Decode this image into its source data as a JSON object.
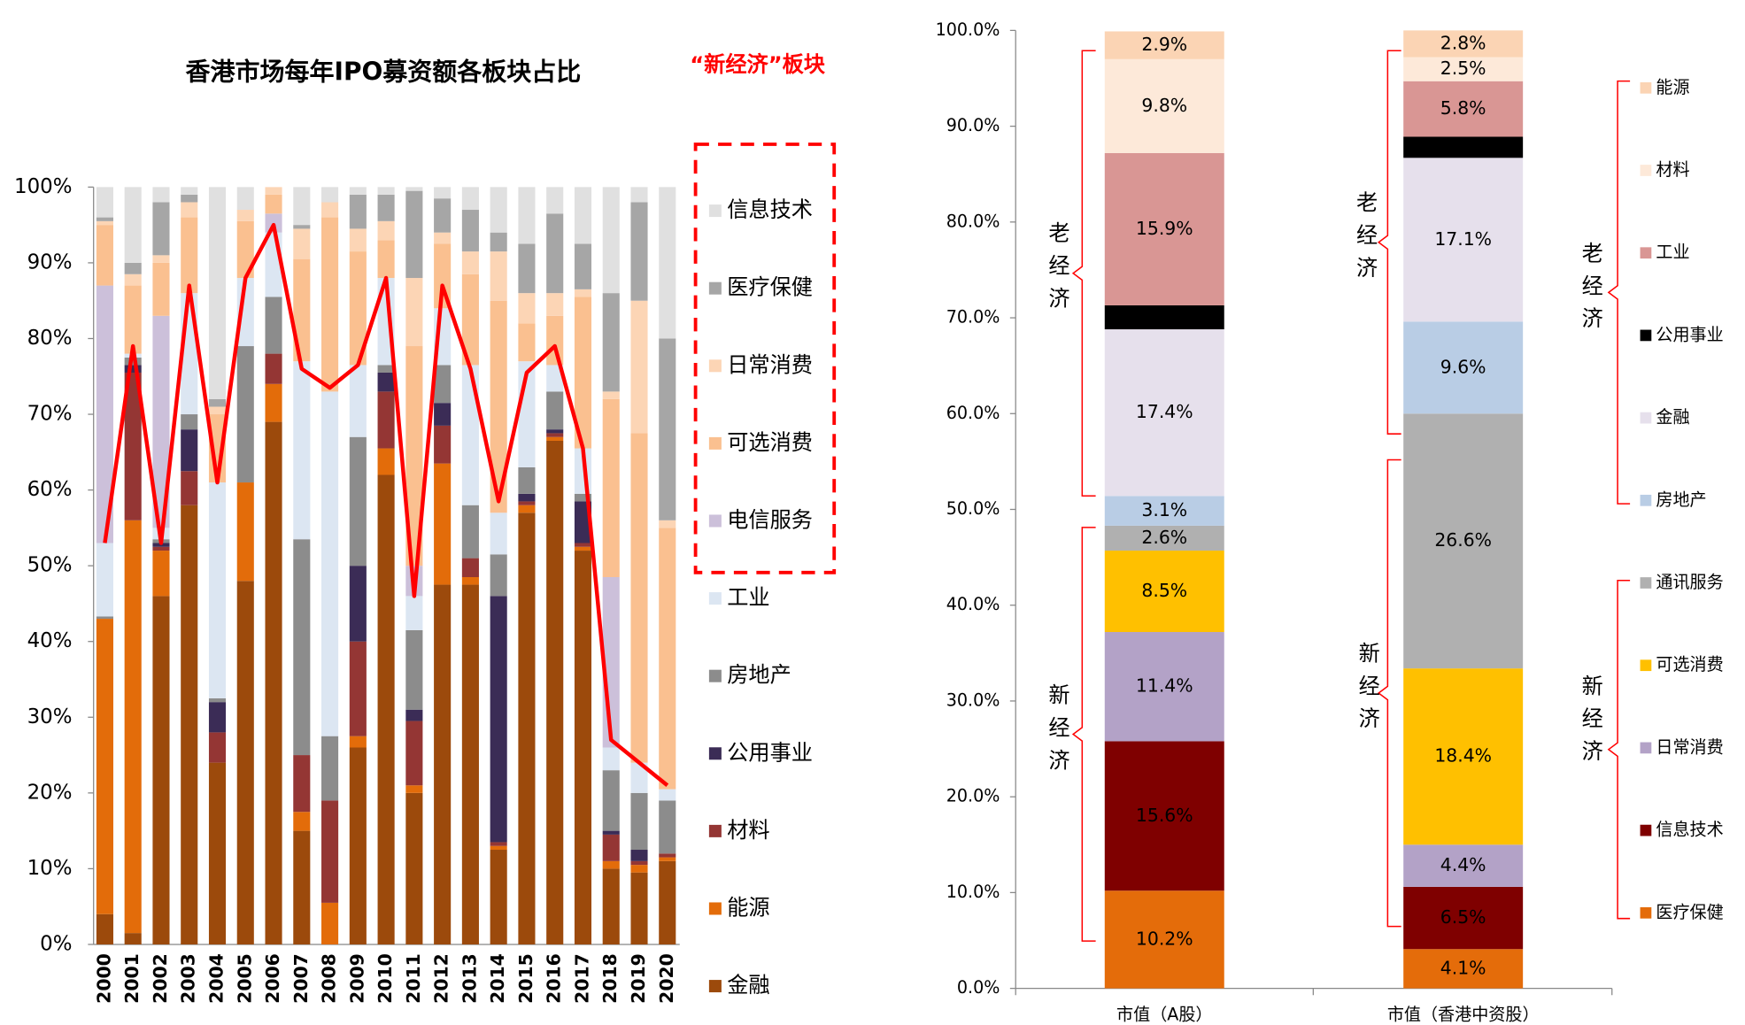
{
  "chart_data": [
    {
      "type": "bar",
      "stacked": true,
      "title": "香港市场每年IPO募资额各板块占比",
      "annotation": "“新经济”板块",
      "categories": [
        "2000",
        "2001",
        "2002",
        "2003",
        "2004",
        "2005",
        "2006",
        "2007",
        "2008",
        "2009",
        "2010",
        "2011",
        "2012",
        "2013",
        "2014",
        "2015",
        "2016",
        "2017",
        "2018",
        "2019",
        "2020"
      ],
      "ylim": [
        0,
        100
      ],
      "yticks": [
        {
          "value": 0,
          "label": "0%"
        },
        {
          "value": 10,
          "label": "10%"
        },
        {
          "value": 20,
          "label": "20%"
        },
        {
          "value": 30,
          "label": "30%"
        },
        {
          "value": 40,
          "label": "40%"
        },
        {
          "value": 50,
          "label": "50%"
        },
        {
          "value": 60,
          "label": "60%"
        },
        {
          "value": 70,
          "label": "70%"
        },
        {
          "value": 80,
          "label": "80%"
        },
        {
          "value": 90,
          "label": "90%"
        },
        {
          "value": 100,
          "label": "100%"
        }
      ],
      "series": [
        {
          "name": "金融",
          "color": "#9c4a0c",
          "values": [
            4,
            1.5,
            46,
            58,
            24,
            48,
            69,
            15,
            0,
            26,
            62,
            20,
            47.5,
            47.5,
            12.5,
            57,
            66.5,
            52,
            10,
            9.5,
            11
          ]
        },
        {
          "name": "能源",
          "color": "#e36c0a",
          "values": [
            39,
            54.5,
            6,
            0,
            0,
            13,
            5,
            2.5,
            5.5,
            1.5,
            3.5,
            1,
            16,
            1,
            0.5,
            1,
            0.5,
            0.5,
            1,
            1,
            0.5
          ]
        },
        {
          "name": "材料",
          "color": "#943634",
          "values": [
            0,
            19.5,
            0.5,
            4.5,
            4,
            0,
            4,
            7.5,
            13.5,
            12.5,
            7.5,
            8.5,
            5,
            2.5,
            0.5,
            0.5,
            0.5,
            0.5,
            3.5,
            0.5,
            0.5
          ]
        },
        {
          "name": "公用事业",
          "color": "#3b2c56",
          "values": [
            0,
            1,
            0.5,
            5.5,
            4,
            0,
            0,
            0,
            0,
            10,
            2.5,
            1.5,
            3,
            0,
            32.5,
            1,
            0.5,
            5.5,
            0.5,
            1.5,
            0
          ]
        },
        {
          "name": "房地产",
          "color": "#8c8c8c",
          "values": [
            0.3,
            1,
            0.5,
            2,
            0.5,
            18,
            7.5,
            28.5,
            8.5,
            17,
            1,
            10.5,
            5,
            7,
            5.5,
            3.5,
            5,
            1,
            8,
            7.5,
            7
          ]
        },
        {
          "name": "工业",
          "color": "#dce6f2",
          "values": [
            9.7,
            0.5,
            1.5,
            16,
            28.5,
            9,
            8.5,
            23.5,
            45.5,
            9.5,
            11.5,
            4.5,
            7.5,
            18.5,
            5.5,
            14,
            3.5,
            6,
            3,
            4,
            1.5
          ]
        },
        {
          "name": "电信服务",
          "color": "#ccc0da",
          "values": [
            34,
            0,
            28,
            0,
            0,
            0,
            2.5,
            0,
            0,
            0,
            0,
            4,
            0,
            0,
            0,
            0,
            0,
            0,
            22.5,
            0,
            0
          ]
        },
        {
          "name": "可选消费",
          "color": "#fac090",
          "values": [
            8,
            9,
            7,
            10,
            9,
            7.5,
            2.5,
            13.5,
            23,
            15,
            5,
            29,
            8.5,
            12,
            28,
            5,
            6.5,
            20,
            23.5,
            43.5,
            34.5
          ]
        },
        {
          "name": "日常消费",
          "color": "#fcd5b5",
          "values": [
            0.5,
            1.5,
            1,
            2,
            1,
            1.5,
            1,
            4,
            2,
            3,
            2.5,
            9,
            1.5,
            3,
            6.5,
            4,
            3,
            1,
            1,
            17.5,
            1
          ]
        },
        {
          "name": "医疗保健",
          "color": "#a6a6a6",
          "values": [
            0.5,
            1.5,
            7,
            1,
            1,
            0,
            0,
            0.5,
            0,
            4.5,
            3.5,
            11.5,
            4.5,
            5.5,
            2.5,
            6.5,
            10.5,
            6,
            13,
            13,
            24
          ]
        },
        {
          "name": "信息技术",
          "color": "#e0e0e0",
          "values": [
            4,
            10,
            2,
            1,
            28,
            3,
            0,
            5,
            2,
            1,
            1,
            0.5,
            1.5,
            3,
            6,
            7.5,
            3.5,
            7.5,
            14,
            2,
            20
          ]
        }
      ],
      "line": {
        "color": "#ff0000",
        "values": [
          53,
          79,
          53,
          87,
          61,
          88,
          95,
          76,
          73.5,
          76.5,
          88,
          46,
          87,
          76,
          58.5,
          75.5,
          79,
          65.5,
          27,
          24,
          21
        ]
      }
    },
    {
      "type": "bar",
      "stacked": true,
      "categories": [
        "市值（A股）",
        "市值（香港中资股）"
      ],
      "ylim": [
        0,
        100
      ],
      "yticks": [
        {
          "value": 0,
          "label": "0.0%"
        },
        {
          "value": 10,
          "label": "10.0%"
        },
        {
          "value": 20,
          "label": "20.0%"
        },
        {
          "value": 30,
          "label": "30.0%"
        },
        {
          "value": 40,
          "label": "40.0%"
        },
        {
          "value": 50,
          "label": "50.0%"
        },
        {
          "value": 60,
          "label": "60.0%"
        },
        {
          "value": 70,
          "label": "70.0%"
        },
        {
          "value": 80,
          "label": "80.0%"
        },
        {
          "value": 90,
          "label": "90.0%"
        },
        {
          "value": 100,
          "label": "100.0%"
        }
      ],
      "groups": [
        "老经济",
        "新经济"
      ],
      "series": [
        {
          "name": "医疗保健",
          "color": "#e46c0a",
          "values": [
            10.2,
            4.1
          ],
          "value_labels": [
            "10.2%",
            "4.1%"
          ]
        },
        {
          "name": "信息技术",
          "color": "#7f0000",
          "values": [
            15.6,
            6.5
          ],
          "value_labels": [
            "15.6%",
            "6.5%"
          ]
        },
        {
          "name": "日常消费",
          "color": "#b3a2c7",
          "values": [
            11.4,
            4.4
          ],
          "value_labels": [
            "11.4%",
            "4.4%"
          ]
        },
        {
          "name": "可选消费",
          "color": "#ffc000",
          "values": [
            8.5,
            18.4
          ],
          "value_labels": [
            "8.5%",
            "18.4%"
          ]
        },
        {
          "name": "通讯服务",
          "color": "#b0b0b0",
          "values": [
            2.6,
            26.6
          ],
          "value_labels": [
            "2.6%",
            "26.6%"
          ]
        },
        {
          "name": "房地产",
          "color": "#b9cde5",
          "values": [
            3.1,
            9.6
          ],
          "value_labels": [
            "3.1%",
            "9.6%"
          ]
        },
        {
          "name": "金融",
          "color": "#e6e0ec",
          "values": [
            17.4,
            17.1
          ],
          "value_labels": [
            "17.4%",
            "17.1%"
          ]
        },
        {
          "name": "公用事业",
          "color": "#000000",
          "values": [
            2.5,
            2.2
          ],
          "value_labels": [
            null,
            null
          ]
        },
        {
          "name": "工业",
          "color": "#d99694",
          "values": [
            15.9,
            5.8
          ],
          "value_labels": [
            "15.9%",
            "5.8%"
          ]
        },
        {
          "name": "材料",
          "color": "#fde9d9",
          "values": [
            9.8,
            2.5
          ],
          "value_labels": [
            "9.8%",
            "2.5%"
          ]
        },
        {
          "name": "能源",
          "color": "#fbd4b4",
          "values": [
            2.9,
            2.8
          ],
          "value_labels": [
            "2.9%",
            "2.8%"
          ]
        }
      ]
    }
  ]
}
